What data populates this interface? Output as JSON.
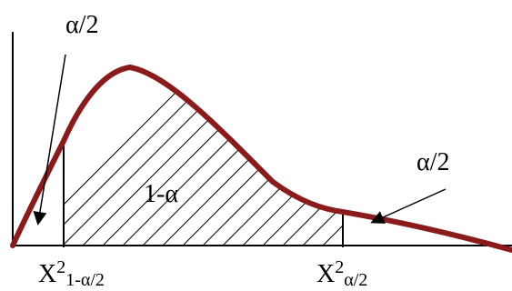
{
  "labels": {
    "alpha_half_left": "α/2",
    "alpha_half_right": "α/2",
    "center_area": "1-α",
    "chi_lower_base": "X",
    "chi_lower_sup": "2",
    "chi_lower_sub": "1-α/2",
    "chi_upper_base": "X",
    "chi_upper_sup": "2",
    "chi_upper_sub": "α/2"
  },
  "colors": {
    "curve": "#8b1a1a",
    "axes": "#000000",
    "hatch": "#000000"
  }
}
